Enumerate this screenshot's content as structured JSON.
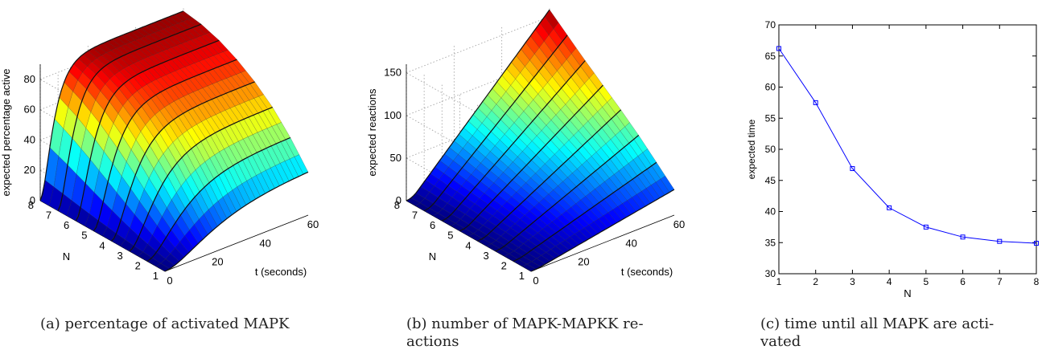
{
  "chart_data": [
    {
      "type": "surface",
      "panel": "a",
      "zlabel": "expected percentage active",
      "xlabel": "t (seconds)",
      "ylabel": "N",
      "x_ticks": [
        "0",
        "20",
        "40",
        "60"
      ],
      "y_ticks": [
        "1",
        "2",
        "3",
        "4",
        "5",
        "6",
        "7",
        "8"
      ],
      "z_ticks": [
        "0",
        "20",
        "40",
        "60",
        "80"
      ],
      "x_range": [
        0,
        60
      ],
      "y_range": [
        1,
        8
      ],
      "z_range": [
        0,
        90
      ],
      "grid": true,
      "colormap": "jet",
      "edge_values_at_t60": [
        {
          "N": 1,
          "value": 30
        },
        {
          "N": 2,
          "value": 45
        },
        {
          "N": 3,
          "value": 58
        },
        {
          "N": 4,
          "value": 68
        },
        {
          "N": 5,
          "value": 76
        },
        {
          "N": 6,
          "value": 82
        },
        {
          "N": 7,
          "value": 86
        },
        {
          "N": 8,
          "value": 88
        }
      ]
    },
    {
      "type": "surface",
      "panel": "b",
      "zlabel": "expected reactions",
      "xlabel": "t (seconds)",
      "ylabel": "N",
      "x_ticks": [
        "0",
        "20",
        "40",
        "60"
      ],
      "y_ticks": [
        "1",
        "2",
        "3",
        "4",
        "5",
        "6",
        "7",
        "8"
      ],
      "z_ticks": [
        "0",
        "50",
        "100",
        "150"
      ],
      "x_range": [
        0,
        60
      ],
      "y_range": [
        1,
        8
      ],
      "z_range": [
        0,
        160
      ],
      "grid": true,
      "colormap": "jet",
      "edge_values_at_t60": [
        {
          "N": 1,
          "value": 30
        },
        {
          "N": 2,
          "value": 50
        },
        {
          "N": 3,
          "value": 70
        },
        {
          "N": 4,
          "value": 88
        },
        {
          "N": 5,
          "value": 105
        },
        {
          "N": 6,
          "value": 122
        },
        {
          "N": 7,
          "value": 140
        },
        {
          "N": 8,
          "value": 158
        }
      ]
    },
    {
      "type": "line",
      "panel": "c",
      "xlabel": "N",
      "ylabel": "expected time",
      "x_ticks": [
        "1",
        "2",
        "3",
        "4",
        "5",
        "6",
        "7",
        "8"
      ],
      "y_ticks": [
        "30",
        "35",
        "40",
        "45",
        "50",
        "55",
        "60",
        "65",
        "70"
      ],
      "xlim": [
        1,
        8
      ],
      "ylim": [
        30,
        70
      ],
      "series": [
        {
          "color": "#0000ff",
          "marker": "square",
          "x": [
            1,
            2,
            3,
            4,
            5,
            6,
            7,
            8
          ],
          "y": [
            66.2,
            57.5,
            46.9,
            40.6,
            37.5,
            35.9,
            35.2,
            34.9
          ]
        }
      ]
    }
  ],
  "captions": {
    "a": "(a) percentage of activated MAPK",
    "b": "(b) number of MAPK-MAPKK re-actions",
    "c": "(c) time until all MAPK are acti-vated"
  },
  "caption_lines": {
    "a": [
      "(a) percentage of activated MAPK"
    ],
    "b": [
      "(b) number of MAPK-MAPKK re-",
      "actions"
    ],
    "c": [
      "(c) time until all MAPK are acti-",
      "vated"
    ]
  }
}
